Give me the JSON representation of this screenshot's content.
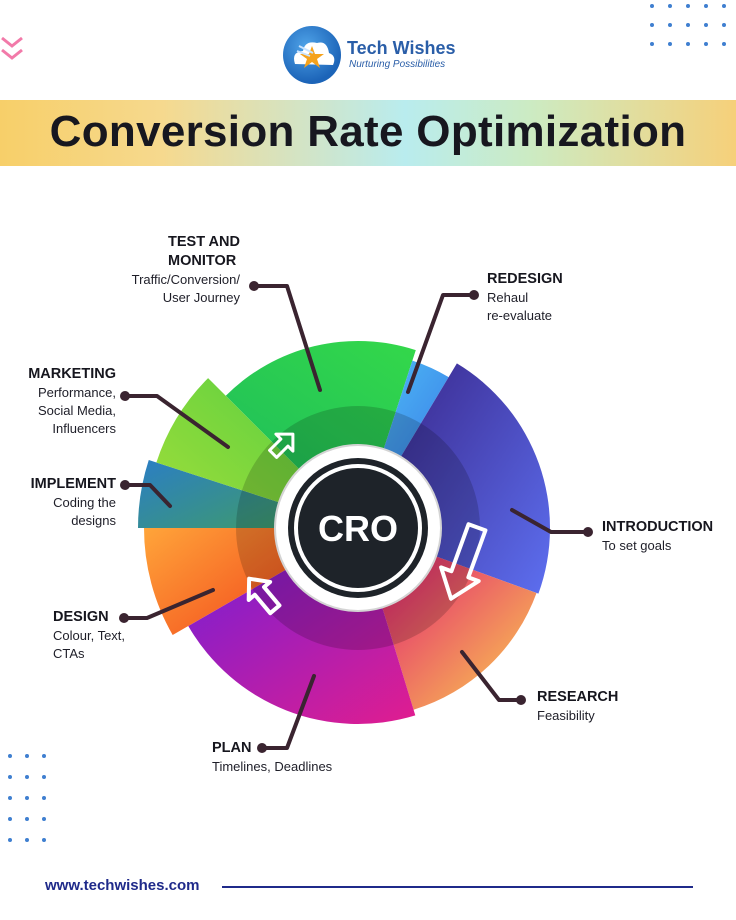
{
  "brand": {
    "name": "Tech Wishes",
    "tagline": "Nurturing Possibilities",
    "website": "www.techwishes.com"
  },
  "title": "Conversion Rate Optimization",
  "center_label": "CRO",
  "stages": [
    {
      "key": "test",
      "heading_lines": [
        "TEST AND",
        "MONITOR"
      ],
      "detail_lines": [
        "Traffic/Conversion/",
        "User Journey"
      ],
      "color": "#22c55e"
    },
    {
      "key": "redesign",
      "heading_lines": [
        "REDESIGN"
      ],
      "detail_lines": [
        "Rehaul",
        "re-evaluate"
      ],
      "color": "#38bdf8"
    },
    {
      "key": "introduction",
      "heading_lines": [
        "INTRODUCTION"
      ],
      "detail_lines": [
        "To set goals"
      ],
      "color": "#4c4fd8"
    },
    {
      "key": "research",
      "heading_lines": [
        "RESEARCH"
      ],
      "detail_lines": [
        "Feasibility"
      ],
      "color": "#f43f7a"
    },
    {
      "key": "plan",
      "heading_lines": [
        "PLAN"
      ],
      "detail_lines": [
        "Timelines, Deadlines"
      ],
      "color": "#b025c9"
    },
    {
      "key": "design",
      "heading_lines": [
        "DESIGN"
      ],
      "detail_lines": [
        "Colour, Text,",
        "CTAs"
      ],
      "color": "#fb7c1c"
    },
    {
      "key": "implement",
      "heading_lines": [
        "IMPLEMENT"
      ],
      "detail_lines": [
        "Coding the",
        "designs"
      ],
      "color": "#2b86b8"
    },
    {
      "key": "marketing",
      "heading_lines": [
        "MARKETING"
      ],
      "detail_lines": [
        "Performance,",
        "Social Media,",
        "Influencers"
      ],
      "color": "#8bd630"
    }
  ],
  "colors": {
    "title_band_start": "#f7cf69",
    "title_band_mid": "#b9ecee",
    "accent_blue": "#1f2a8a",
    "connector": "#3a2430",
    "hub": "#1e2329"
  }
}
